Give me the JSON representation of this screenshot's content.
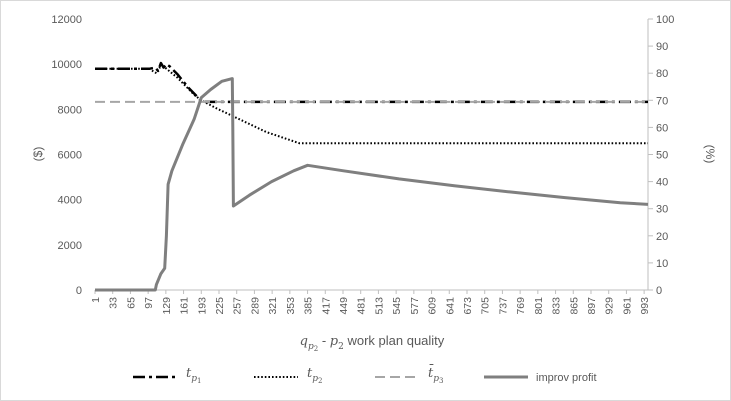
{
  "chart_data": {
    "type": "line",
    "title": "",
    "xlabel": "q_{p2} - p2 work plan quality",
    "xlabel_parts": {
      "q": "q",
      "q_sub": "p",
      "q_subsub": "2",
      "dash": " - ",
      "p": "p",
      "p_sub": "2",
      "rest": " work plan quality"
    },
    "ylabel_left": "($)",
    "ylabel_right": "(%)",
    "ylim_left": [
      0,
      12000
    ],
    "ylim_right": [
      0,
      100
    ],
    "yticks_left": [
      "0",
      "2000",
      "4000",
      "6000",
      "8000",
      "10000",
      "12000"
    ],
    "yticks_right": [
      "0",
      "10",
      "20",
      "30",
      "40",
      "50",
      "60",
      "70",
      "80",
      "90",
      "100"
    ],
    "xlim": [
      1,
      1000
    ],
    "xticks": [
      "1",
      "33",
      "65",
      "97",
      "129",
      "161",
      "193",
      "225",
      "257",
      "289",
      "321",
      "353",
      "385",
      "417",
      "449",
      "481",
      "513",
      "545",
      "577",
      "609",
      "641",
      "673",
      "705",
      "737",
      "769",
      "801",
      "833",
      "865",
      "897",
      "929",
      "961",
      "993"
    ],
    "grid": false,
    "legend_position": "bottom",
    "series": [
      {
        "name": "t_{p1}",
        "legend": {
          "main": "t",
          "sub": "p",
          "subsub": "1"
        },
        "axis": "left",
        "color": "#000000",
        "style": "dash-dot",
        "x": [
          1,
          100,
          110,
          115,
          120,
          125,
          130,
          133,
          136,
          140,
          150,
          160,
          170,
          180,
          190,
          193,
          210,
          230,
          260,
          300,
          400,
          500,
          600,
          700,
          800,
          900,
          1000
        ],
        "y": [
          9800,
          9800,
          9850,
          9700,
          10050,
          9850,
          10000,
          9950,
          9900,
          9800,
          9550,
          9250,
          8950,
          8700,
          8450,
          8330,
          8330,
          8330,
          8330,
          8330,
          8330,
          8330,
          8330,
          8330,
          8330,
          8330,
          8330
        ]
      },
      {
        "name": "t_{p2}",
        "legend": {
          "main": "t",
          "sub": "p",
          "subsub": "2"
        },
        "axis": "left",
        "color": "#000000",
        "style": "dotted",
        "x": [
          1,
          100,
          105,
          112,
          118,
          125,
          130,
          140,
          150,
          160,
          170,
          180,
          193,
          220,
          250,
          280,
          310,
          340,
          370,
          385,
          500,
          600,
          700,
          800,
          900,
          1000
        ],
        "y": [
          9800,
          9800,
          9700,
          9600,
          9850,
          9900,
          9800,
          9600,
          9400,
          9150,
          8900,
          8650,
          8400,
          8050,
          7700,
          7350,
          7000,
          6750,
          6500,
          6500,
          6500,
          6500,
          6500,
          6500,
          6500,
          6500
        ]
      },
      {
        "name": "t̄_{p3}",
        "legend": {
          "main": "t̄",
          "sub": "p",
          "subsub": "3"
        },
        "axis": "left",
        "color": "#a6a6a6",
        "style": "dashed",
        "x": [
          1,
          1000
        ],
        "y": [
          8330,
          8330
        ]
      },
      {
        "name": "improv profit",
        "legend": {
          "main": "improv profit"
        },
        "axis": "right",
        "color": "#7f7f7f",
        "style": "solid",
        "x": [
          1,
          110,
          112,
          120,
          127,
          130,
          133,
          140,
          160,
          180,
          193,
          210,
          230,
          249,
          250,
          251,
          280,
          320,
          360,
          385,
          450,
          550,
          650,
          750,
          850,
          950,
          1000
        ],
        "y": [
          0,
          0,
          2,
          6,
          8,
          20,
          39,
          44,
          54,
          63,
          71,
          74,
          77,
          78,
          60,
          31,
          35,
          40,
          44,
          46,
          44,
          41,
          38.5,
          36.2,
          34.1,
          32.2,
          31.6
        ]
      }
    ]
  }
}
